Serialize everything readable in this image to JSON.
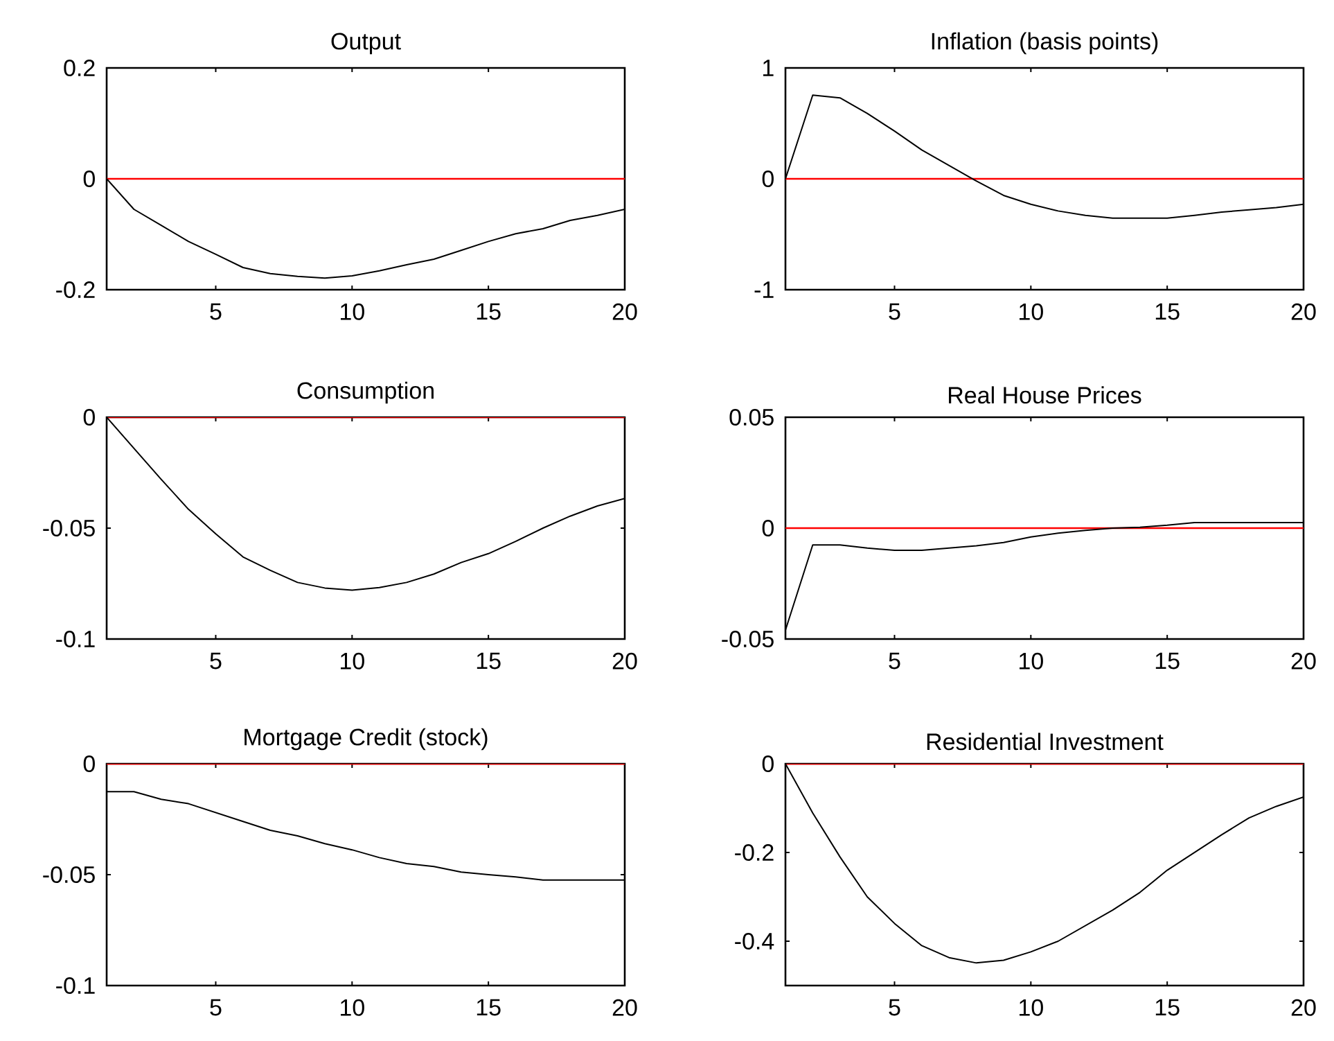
{
  "chart_data": [
    {
      "type": "line",
      "title": "Output",
      "x": [
        1,
        2,
        3,
        4,
        5,
        6,
        7,
        8,
        9,
        10,
        11,
        12,
        13,
        14,
        15,
        16,
        17,
        18,
        19,
        20
      ],
      "xlim": [
        1,
        20
      ],
      "xticks": [
        5,
        10,
        15,
        20
      ],
      "ylim": [
        -0.2,
        0.2
      ],
      "yticks": [
        -0.2,
        0,
        0.2
      ],
      "series": [
        {
          "color": "#000000",
          "values": [
            0,
            -0.055,
            -0.084,
            -0.113,
            -0.136,
            -0.16,
            -0.171,
            -0.176,
            -0.179,
            -0.175,
            -0.166,
            -0.155,
            -0.145,
            -0.129,
            -0.113,
            -0.099,
            -0.09,
            -0.075,
            -0.066,
            -0.055
          ]
        }
      ],
      "ref_lines": [
        {
          "axis": "y",
          "value": 0,
          "color": "#ff0000"
        }
      ]
    },
    {
      "type": "line",
      "title": "Inflation (basis points)",
      "x": [
        1,
        2,
        3,
        4,
        5,
        6,
        7,
        8,
        9,
        10,
        11,
        12,
        13,
        14,
        15,
        16,
        17,
        18,
        19,
        20
      ],
      "xlim": [
        1,
        20
      ],
      "xticks": [
        5,
        10,
        15,
        20
      ],
      "ylim": [
        -1,
        1
      ],
      "yticks": [
        -1,
        0,
        1
      ],
      "series": [
        {
          "color": "#000000",
          "values": [
            0,
            0.755,
            0.73,
            0.59,
            0.43,
            0.26,
            0.12,
            -0.02,
            -0.15,
            -0.23,
            -0.29,
            -0.33,
            -0.355,
            -0.355,
            -0.355,
            -0.33,
            -0.3,
            -0.28,
            -0.26,
            -0.23
          ]
        }
      ],
      "ref_lines": [
        {
          "axis": "y",
          "value": 0,
          "color": "#ff0000"
        }
      ]
    },
    {
      "type": "line",
      "title": "Consumption",
      "x": [
        1,
        2,
        3,
        4,
        5,
        6,
        7,
        8,
        9,
        10,
        11,
        12,
        13,
        14,
        15,
        16,
        17,
        18,
        19,
        20
      ],
      "xlim": [
        1,
        20
      ],
      "xticks": [
        5,
        10,
        15,
        20
      ],
      "ylim": [
        -0.1,
        0
      ],
      "yticks": [
        -0.1,
        -0.05,
        0
      ],
      "series": [
        {
          "color": "#000000",
          "values": [
            0,
            -0.014,
            -0.028,
            -0.0415,
            -0.0526,
            -0.063,
            -0.069,
            -0.0745,
            -0.077,
            -0.078,
            -0.0768,
            -0.0745,
            -0.0707,
            -0.0655,
            -0.0615,
            -0.056,
            -0.05,
            -0.0446,
            -0.04,
            -0.0366
          ]
        }
      ],
      "ref_lines": [
        {
          "axis": "y",
          "value": 0,
          "color": "#ff0000"
        }
      ]
    },
    {
      "type": "line",
      "title": "Real House Prices",
      "x": [
        1,
        2,
        3,
        4,
        5,
        6,
        7,
        8,
        9,
        10,
        11,
        12,
        13,
        14,
        15,
        16,
        17,
        18,
        19,
        20
      ],
      "xlim": [
        1,
        20
      ],
      "xticks": [
        5,
        10,
        15,
        20
      ],
      "ylim": [
        -0.05,
        0.05
      ],
      "yticks": [
        -0.05,
        0,
        0.05
      ],
      "series": [
        {
          "color": "#000000",
          "values": [
            -0.046,
            -0.0076,
            -0.0076,
            -0.009,
            -0.01,
            -0.01,
            -0.009,
            -0.008,
            -0.0065,
            -0.004,
            -0.0023,
            -0.001,
            0,
            0.0004,
            0.0013,
            0.0025,
            0.0025,
            0.0025,
            0.0025,
            0.0025
          ]
        }
      ],
      "ref_lines": [
        {
          "axis": "y",
          "value": 0,
          "color": "#ff0000"
        }
      ]
    },
    {
      "type": "line",
      "title": "Mortgage Credit (stock)",
      "x": [
        1,
        2,
        3,
        4,
        5,
        6,
        7,
        8,
        9,
        10,
        11,
        12,
        13,
        14,
        15,
        16,
        17,
        18,
        19,
        20
      ],
      "xlim": [
        1,
        20
      ],
      "xticks": [
        5,
        10,
        15,
        20
      ],
      "ylim": [
        -0.1,
        0
      ],
      "yticks": [
        -0.1,
        -0.05,
        0
      ],
      "series": [
        {
          "color": "#000000",
          "values": [
            -0.0126,
            -0.0126,
            -0.016,
            -0.018,
            -0.022,
            -0.026,
            -0.03,
            -0.0325,
            -0.036,
            -0.0388,
            -0.0423,
            -0.045,
            -0.0463,
            -0.0488,
            -0.05,
            -0.051,
            -0.0524,
            -0.0524,
            -0.0524,
            -0.0524
          ]
        }
      ],
      "ref_lines": [
        {
          "axis": "y",
          "value": 0,
          "color": "#ff0000"
        }
      ]
    },
    {
      "type": "line",
      "title": "Residential Investment",
      "x": [
        1,
        2,
        3,
        4,
        5,
        6,
        7,
        8,
        9,
        10,
        11,
        12,
        13,
        14,
        15,
        16,
        17,
        18,
        19,
        20
      ],
      "xlim": [
        1,
        20
      ],
      "xticks": [
        5,
        10,
        15,
        20
      ],
      "ylim": [
        -0.5,
        0
      ],
      "yticks": [
        -0.4,
        -0.2,
        0
      ],
      "series": [
        {
          "color": "#000000",
          "values": [
            0,
            -0.111,
            -0.21,
            -0.3,
            -0.36,
            -0.41,
            -0.437,
            -0.449,
            -0.443,
            -0.424,
            -0.4,
            -0.365,
            -0.33,
            -0.29,
            -0.24,
            -0.2,
            -0.16,
            -0.122,
            -0.096,
            -0.075
          ]
        }
      ],
      "ref_lines": [
        {
          "axis": "y",
          "value": 0,
          "color": "#ff0000"
        }
      ]
    }
  ]
}
